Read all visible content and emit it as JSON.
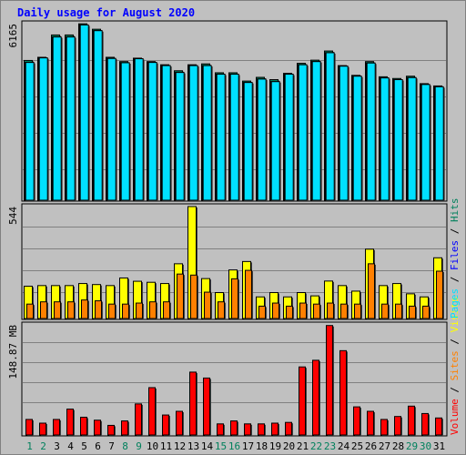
{
  "title": "Daily usage for August 2020",
  "colors": {
    "background": "#c0c0c0",
    "title": "#0000ff",
    "hits": "#00805c",
    "files": "#0000ff",
    "pages": "#00e0ff",
    "visits": "#ffff00",
    "sites": "#ff8000",
    "volume": "#ff0000",
    "weekday_label": "#000000",
    "weekend_label": "#00805c"
  },
  "chart_data": [
    {
      "type": "bar",
      "panel": "hits-files-pages",
      "scale_label": "6165",
      "ymax": 6165,
      "categories": [
        "1",
        "2",
        "3",
        "4",
        "5",
        "6",
        "7",
        "8",
        "9",
        "10",
        "11",
        "12",
        "13",
        "14",
        "15",
        "16",
        "17",
        "18",
        "19",
        "20",
        "21",
        "22",
        "23",
        "24",
        "25",
        "26",
        "27",
        "28",
        "29",
        "30",
        "31"
      ],
      "series": [
        {
          "name": "Hits",
          "values": [
            4880,
            4990,
            5770,
            5770,
            6160,
            5970,
            4990,
            4840,
            4960,
            4840,
            4730,
            4520,
            4730,
            4760,
            4450,
            4450,
            4160,
            4290,
            4210,
            4430,
            4780,
            4890,
            5210,
            4700,
            4360,
            4840,
            4310,
            4250,
            4330,
            4070,
            3990
          ]
        },
        {
          "name": "Files",
          "values": [
            4810,
            4970,
            5700,
            5700,
            6120,
            5920,
            4950,
            4800,
            4940,
            4810,
            4700,
            4460,
            4700,
            4700,
            4400,
            4400,
            4110,
            4230,
            4140,
            4400,
            4730,
            4840,
            5150,
            4680,
            4330,
            4790,
            4270,
            4210,
            4280,
            4040,
            3960
          ]
        },
        {
          "name": "Pages",
          "values": [
            4810,
            4970,
            5700,
            5700,
            6120,
            5920,
            4950,
            4800,
            4940,
            4810,
            4700,
            4460,
            4700,
            4700,
            4400,
            4400,
            4110,
            4230,
            4140,
            4400,
            4730,
            4840,
            5150,
            4680,
            4330,
            4790,
            4270,
            4210,
            4280,
            4040,
            3960
          ]
        }
      ]
    },
    {
      "type": "bar",
      "panel": "visits-sites",
      "scale_label": "544",
      "ymax": 544,
      "categories": [
        "1",
        "2",
        "3",
        "4",
        "5",
        "6",
        "7",
        "8",
        "9",
        "10",
        "11",
        "12",
        "13",
        "14",
        "15",
        "16",
        "17",
        "18",
        "19",
        "20",
        "21",
        "22",
        "23",
        "24",
        "25",
        "26",
        "27",
        "28",
        "29",
        "30",
        "31"
      ],
      "series": [
        {
          "name": "Visits",
          "values": [
            157,
            160,
            160,
            160,
            170,
            165,
            160,
            197,
            181,
            176,
            170,
            266,
            544,
            194,
            126,
            236,
            277,
            105,
            126,
            105,
            126,
            110,
            182,
            160,
            133,
            337,
            160,
            170,
            120,
            105,
            295
          ]
        },
        {
          "name": "Sites",
          "values": [
            70,
            81,
            81,
            81,
            90,
            86,
            70,
            70,
            75,
            81,
            81,
            216,
            211,
            128,
            81,
            193,
            234,
            60,
            75,
            60,
            75,
            70,
            75,
            70,
            70,
            266,
            70,
            70,
            60,
            60,
            230
          ]
        }
      ]
    },
    {
      "type": "bar",
      "panel": "volume",
      "scale_label": "148.87 MB",
      "ymax": 148.87,
      "categories": [
        "1",
        "2",
        "3",
        "4",
        "5",
        "6",
        "7",
        "8",
        "9",
        "10",
        "11",
        "12",
        "13",
        "14",
        "15",
        "16",
        "17",
        "18",
        "19",
        "20",
        "21",
        "22",
        "23",
        "24",
        "25",
        "26",
        "27",
        "28",
        "29",
        "30",
        "31"
      ],
      "series": [
        {
          "name": "Volume",
          "values": [
            21,
            16,
            21,
            35,
            24,
            20,
            13,
            19,
            42,
            64,
            27,
            32,
            85,
            77,
            15,
            19,
            15,
            15,
            16,
            17,
            92,
            101,
            148,
            114,
            38,
            32,
            21,
            25,
            39,
            29,
            23
          ]
        }
      ]
    }
  ],
  "legend": {
    "left_order": [
      "Volume",
      "Sites",
      "Visits"
    ],
    "right_order": [
      "Pages",
      "Files",
      "Hits"
    ],
    "separator": " / "
  },
  "x_labels": {
    "weekend_days": [
      "1",
      "2",
      "8",
      "9",
      "15",
      "16",
      "22",
      "23",
      "29",
      "30"
    ]
  }
}
